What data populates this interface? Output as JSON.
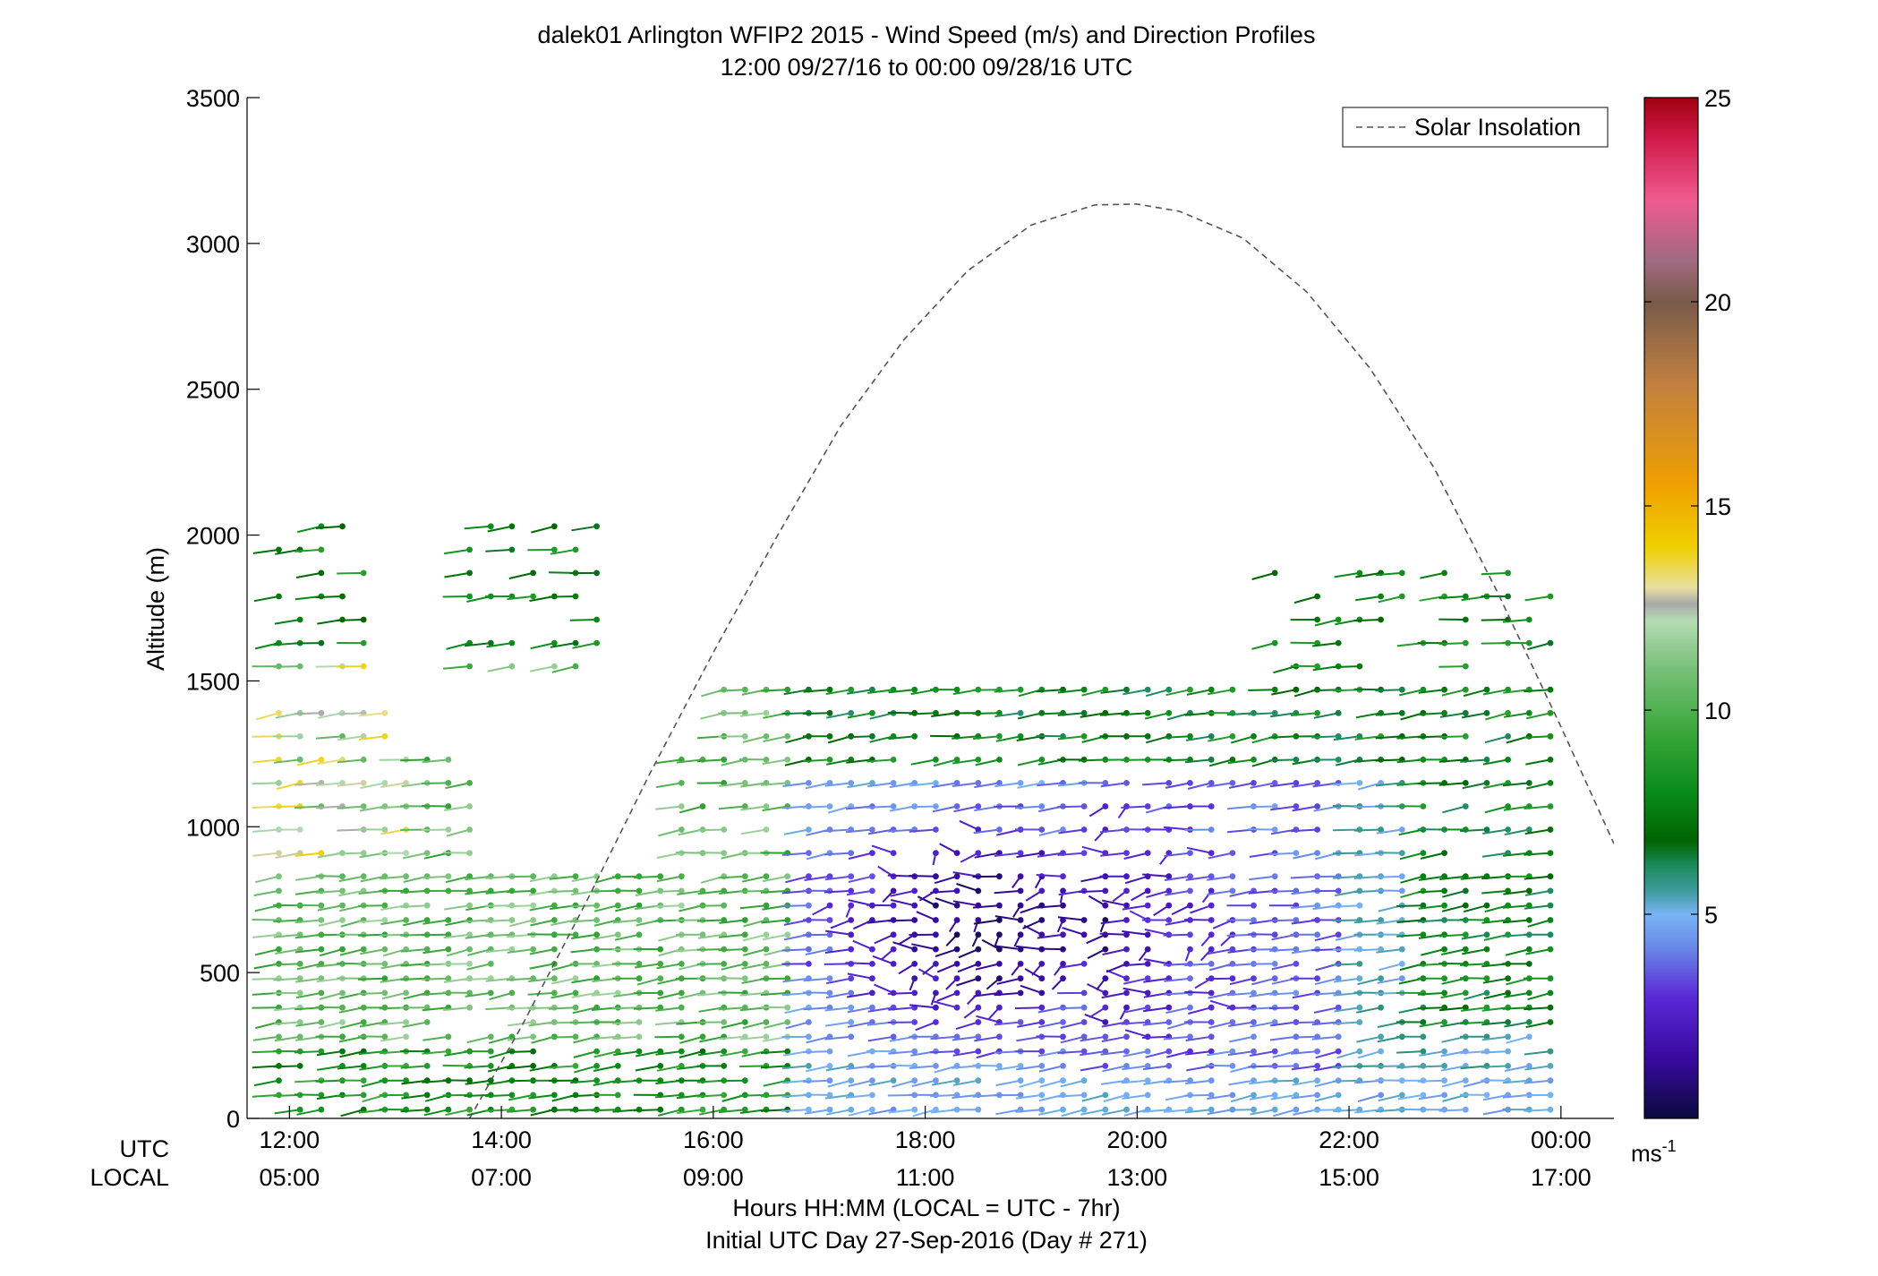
{
  "title": "dalek01 Arlington WFIP2 2015 - Wind Speed (m/s) and Direction Profiles",
  "subtitle": "12:00 09/27/16 to 00:00 09/28/16  UTC",
  "chart_data": {
    "type": "scatter",
    "ylabel": "Altitude (m)",
    "xlabel": "Hours HH:MM  (LOCAL = UTC - 7hr)",
    "xlabel2": "Initial UTC Day 27-Sep-2016 (Day # 271)",
    "xrow_labels": [
      "UTC",
      "LOCAL"
    ],
    "ylim": [
      0,
      3500
    ],
    "xlim_hours": [
      11.6,
      24.5
    ],
    "y_ticks": [
      "0",
      "500",
      "1000",
      "1500",
      "2000",
      "2500",
      "3000",
      "3500"
    ],
    "x_ticks_hours": [
      12,
      14,
      16,
      18,
      20,
      22,
      24
    ],
    "x_ticks_utc": [
      "12:00",
      "14:00",
      "16:00",
      "18:00",
      "20:00",
      "22:00",
      "00:00"
    ],
    "x_ticks_local": [
      "05:00",
      "07:00",
      "09:00",
      "11:00",
      "13:00",
      "15:00",
      "17:00"
    ],
    "legend": {
      "entries": [
        "Solar Insolation"
      ],
      "placement": "top-right"
    },
    "solar_insolation": {
      "name": "Solar Insolation",
      "style": "dashed",
      "color": "#555555",
      "x_hours": [
        13.7,
        14.2,
        14.8,
        15.4,
        16.0,
        16.6,
        17.2,
        17.8,
        18.4,
        19.0,
        19.6,
        20.0,
        20.4,
        21.0,
        21.6,
        22.2,
        22.8,
        23.4,
        24.0,
        24.5
      ],
      "y": [
        0,
        322,
        741,
        1181,
        1597,
        1995,
        2373,
        2670,
        2906,
        3063,
        3132,
        3135,
        3110,
        3018,
        2834,
        2571,
        2232,
        1805,
        1343,
        942
      ]
    },
    "colorbar": {
      "unit_label": "ms",
      "unit_exponent": "-1",
      "ticks": [
        "5",
        "10",
        "15",
        "20",
        "25"
      ],
      "tick_values": [
        5,
        10,
        15,
        20,
        25
      ],
      "range": [
        0,
        25
      ],
      "stops": [
        {
          "v": 0,
          "c": "#0a0a3c"
        },
        {
          "v": 1.5,
          "c": "#3a0aa0"
        },
        {
          "v": 3,
          "c": "#5a2ad8"
        },
        {
          "v": 4.2,
          "c": "#6a8ae8"
        },
        {
          "v": 5,
          "c": "#78b4f4"
        },
        {
          "v": 5.6,
          "c": "#3c9a9a"
        },
        {
          "v": 6.2,
          "c": "#1a8a5a"
        },
        {
          "v": 6.8,
          "c": "#006400"
        },
        {
          "v": 8,
          "c": "#0a8c1a"
        },
        {
          "v": 9.5,
          "c": "#3ca83c"
        },
        {
          "v": 11,
          "c": "#78c078"
        },
        {
          "v": 12.2,
          "c": "#b4dcb4"
        },
        {
          "v": 12.6,
          "c": "#a8a8a8"
        },
        {
          "v": 13,
          "c": "#e8e0a0"
        },
        {
          "v": 14,
          "c": "#f0d000"
        },
        {
          "v": 15.5,
          "c": "#f0a000"
        },
        {
          "v": 18,
          "c": "#c08040"
        },
        {
          "v": 20,
          "c": "#7a5a4a"
        },
        {
          "v": 21,
          "c": "#a06a80"
        },
        {
          "v": 22.5,
          "c": "#f05a90"
        },
        {
          "v": 24,
          "c": "#d01a4a"
        },
        {
          "v": 25,
          "c": "#a00010"
        }
      ]
    }
  }
}
